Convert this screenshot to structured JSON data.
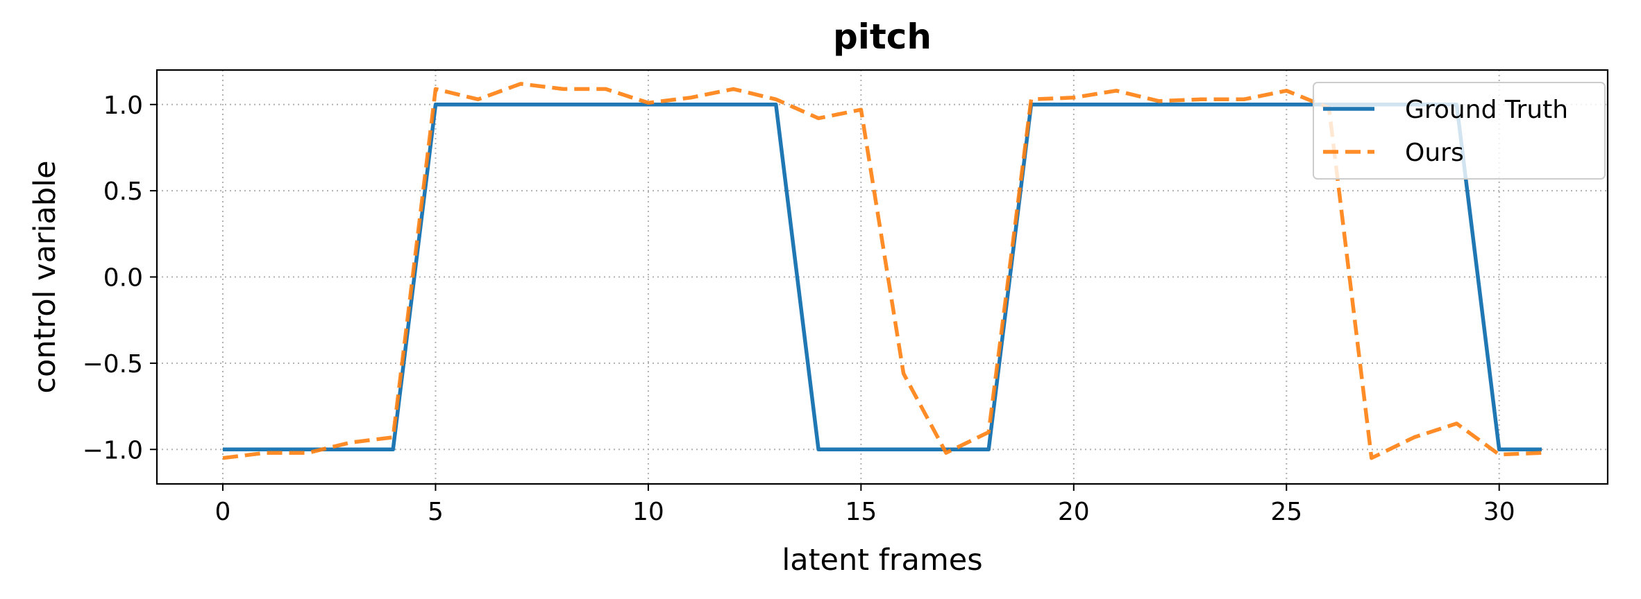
{
  "chart_data": {
    "type": "line",
    "title": "pitch",
    "xlabel": "latent frames",
    "ylabel": "control variable",
    "xlim": [
      -1.55,
      32.55
    ],
    "ylim": [
      -1.2,
      1.2
    ],
    "xticks": [
      0,
      5,
      10,
      15,
      20,
      25,
      30
    ],
    "xtick_labels": [
      "0",
      "5",
      "10",
      "15",
      "20",
      "25",
      "30"
    ],
    "yticks": [
      -1.0,
      -0.5,
      0.0,
      0.5,
      1.0
    ],
    "ytick_labels": [
      "−1.0",
      "−0.5",
      "0.0",
      "0.5",
      "1.0"
    ],
    "grid": true,
    "legend_position": "top-right",
    "x": [
      0,
      1,
      2,
      3,
      4,
      5,
      6,
      7,
      8,
      9,
      10,
      11,
      12,
      13,
      14,
      15,
      16,
      17,
      18,
      19,
      20,
      21,
      22,
      23,
      24,
      25,
      26,
      27,
      28,
      29,
      30,
      31
    ],
    "series": [
      {
        "name": "Ground Truth",
        "color": "#1f77b4",
        "style": "solid",
        "values": [
          -1,
          -1,
          -1,
          -1,
          -1,
          1,
          1,
          1,
          1,
          1,
          1,
          1,
          1,
          1,
          -1,
          -1,
          -1,
          -1,
          -1,
          1,
          1,
          1,
          1,
          1,
          1,
          1,
          1,
          1,
          1,
          1,
          -1,
          -1
        ]
      },
      {
        "name": "Ours",
        "color": "#ff7f0e",
        "style": "dashed",
        "values": [
          -1.05,
          -1.02,
          -1.02,
          -0.96,
          -0.93,
          1.09,
          1.03,
          1.12,
          1.09,
          1.09,
          1.01,
          1.04,
          1.09,
          1.03,
          0.92,
          0.97,
          -0.56,
          -1.02,
          -0.9,
          1.03,
          1.04,
          1.08,
          1.02,
          1.03,
          1.03,
          1.08,
          0.98,
          -1.05,
          -0.93,
          -0.85,
          -1.03,
          -1.02
        ]
      }
    ]
  }
}
